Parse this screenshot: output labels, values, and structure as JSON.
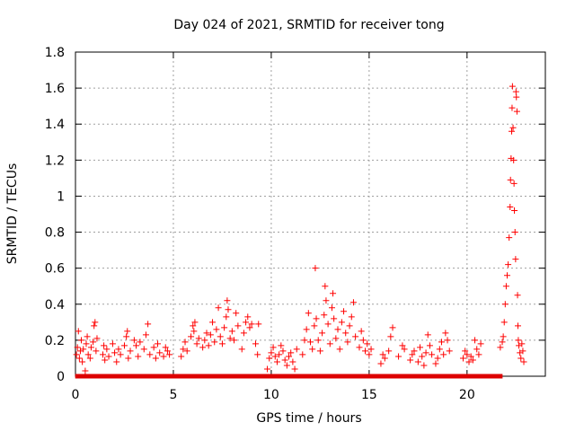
{
  "chart_data": {
    "type": "scatter",
    "title": "Day 024 of 2021, SRMTID for receiver tong",
    "xlabel": "GPS time / hours",
    "ylabel": "SRMTID / TECUs",
    "xlim": [
      0,
      24
    ],
    "ylim": [
      0,
      1.8
    ],
    "xticks": [
      0,
      5,
      10,
      15,
      20
    ],
    "yticks": [
      0,
      0.2,
      0.4,
      0.6,
      0.8,
      1,
      1.2,
      1.4,
      1.6,
      1.8
    ],
    "xtick_labels": [
      "0",
      "5",
      "10",
      "15",
      "20"
    ],
    "ytick_labels": [
      "0",
      "0.2",
      "0.4",
      "0.6",
      "0.8",
      "1",
      "1.2",
      "1.4",
      "1.6",
      "1.8"
    ],
    "grid": true,
    "marker": "+",
    "series_color": "#ff0000",
    "zero_marker_color": "#dd0000",
    "series": [
      {
        "name": "SRMTID",
        "points": [
          [
            0.05,
            0.12
          ],
          [
            0.1,
            0.16
          ],
          [
            0.15,
            0.25
          ],
          [
            0.2,
            0.1
          ],
          [
            0.25,
            0.14
          ],
          [
            0.3,
            0.2
          ],
          [
            0.35,
            0.08
          ],
          [
            0.4,
            0.15
          ],
          [
            0.5,
            0.03
          ],
          [
            0.55,
            0.18
          ],
          [
            0.6,
            0.22
          ],
          [
            0.65,
            0.12
          ],
          [
            0.75,
            0.1
          ],
          [
            0.8,
            0.16
          ],
          [
            0.9,
            0.19
          ],
          [
            0.95,
            0.28
          ],
          [
            1.0,
            0.3
          ],
          [
            1.05,
            0.14
          ],
          [
            1.1,
            0.21
          ],
          [
            1.4,
            0.12
          ],
          [
            1.45,
            0.17
          ],
          [
            1.5,
            0.09
          ],
          [
            1.6,
            0.15
          ],
          [
            1.7,
            0.11
          ],
          [
            1.9,
            0.18
          ],
          [
            2.0,
            0.13
          ],
          [
            2.1,
            0.08
          ],
          [
            2.2,
            0.15
          ],
          [
            2.3,
            0.12
          ],
          [
            2.5,
            0.17
          ],
          [
            2.6,
            0.22
          ],
          [
            2.65,
            0.25
          ],
          [
            2.7,
            0.1
          ],
          [
            2.8,
            0.14
          ],
          [
            3.0,
            0.2
          ],
          [
            3.1,
            0.17
          ],
          [
            3.2,
            0.11
          ],
          [
            3.3,
            0.19
          ],
          [
            3.5,
            0.15
          ],
          [
            3.6,
            0.23
          ],
          [
            3.7,
            0.29
          ],
          [
            3.8,
            0.12
          ],
          [
            4.0,
            0.16
          ],
          [
            4.1,
            0.1
          ],
          [
            4.2,
            0.18
          ],
          [
            4.3,
            0.13
          ],
          [
            4.5,
            0.11
          ],
          [
            4.6,
            0.16
          ],
          [
            4.7,
            0.14
          ],
          [
            4.8,
            0.12
          ],
          [
            5.4,
            0.11
          ],
          [
            5.5,
            0.15
          ],
          [
            5.6,
            0.19
          ],
          [
            5.7,
            0.14
          ],
          [
            5.9,
            0.22
          ],
          [
            6.0,
            0.28
          ],
          [
            6.05,
            0.25
          ],
          [
            6.1,
            0.3
          ],
          [
            6.2,
            0.18
          ],
          [
            6.3,
            0.21
          ],
          [
            6.5,
            0.16
          ],
          [
            6.6,
            0.2
          ],
          [
            6.7,
            0.24
          ],
          [
            6.8,
            0.17
          ],
          [
            6.9,
            0.23
          ],
          [
            7.0,
            0.3
          ],
          [
            7.1,
            0.19
          ],
          [
            7.2,
            0.26
          ],
          [
            7.3,
            0.38
          ],
          [
            7.4,
            0.22
          ],
          [
            7.5,
            0.18
          ],
          [
            7.6,
            0.27
          ],
          [
            7.7,
            0.33
          ],
          [
            7.75,
            0.42
          ],
          [
            7.8,
            0.37
          ],
          [
            7.9,
            0.21
          ],
          [
            8.0,
            0.25
          ],
          [
            8.1,
            0.2
          ],
          [
            8.2,
            0.35
          ],
          [
            8.3,
            0.28
          ],
          [
            8.5,
            0.15
          ],
          [
            8.6,
            0.24
          ],
          [
            8.7,
            0.3
          ],
          [
            8.8,
            0.33
          ],
          [
            8.9,
            0.27
          ],
          [
            9.0,
            0.29
          ],
          [
            9.2,
            0.18
          ],
          [
            9.3,
            0.12
          ],
          [
            9.35,
            0.29
          ],
          [
            9.8,
            0.04
          ],
          [
            9.9,
            0.1
          ],
          [
            10.0,
            0.13
          ],
          [
            10.1,
            0.16
          ],
          [
            10.2,
            0.11
          ],
          [
            10.3,
            0.08
          ],
          [
            10.4,
            0.12
          ],
          [
            10.5,
            0.17
          ],
          [
            10.6,
            0.14
          ],
          [
            10.7,
            0.09
          ],
          [
            10.8,
            0.06
          ],
          [
            10.9,
            0.11
          ],
          [
            11.0,
            0.13
          ],
          [
            11.1,
            0.08
          ],
          [
            11.2,
            0.04
          ],
          [
            11.3,
            0.15
          ],
          [
            11.6,
            0.12
          ],
          [
            11.7,
            0.2
          ],
          [
            11.8,
            0.26
          ],
          [
            11.9,
            0.35
          ],
          [
            12.0,
            0.19
          ],
          [
            12.1,
            0.15
          ],
          [
            12.2,
            0.28
          ],
          [
            12.25,
            0.6
          ],
          [
            12.3,
            0.32
          ],
          [
            12.4,
            0.2
          ],
          [
            12.5,
            0.14
          ],
          [
            12.6,
            0.24
          ],
          [
            12.7,
            0.34
          ],
          [
            12.75,
            0.5
          ],
          [
            12.8,
            0.42
          ],
          [
            12.9,
            0.29
          ],
          [
            13.0,
            0.18
          ],
          [
            13.1,
            0.38
          ],
          [
            13.15,
            0.46
          ],
          [
            13.2,
            0.32
          ],
          [
            13.3,
            0.21
          ],
          [
            13.4,
            0.26
          ],
          [
            13.5,
            0.15
          ],
          [
            13.6,
            0.3
          ],
          [
            13.7,
            0.36
          ],
          [
            13.8,
            0.24
          ],
          [
            13.9,
            0.19
          ],
          [
            14.0,
            0.28
          ],
          [
            14.1,
            0.33
          ],
          [
            14.2,
            0.41
          ],
          [
            14.3,
            0.22
          ],
          [
            14.5,
            0.16
          ],
          [
            14.6,
            0.25
          ],
          [
            14.7,
            0.2
          ],
          [
            14.8,
            0.14
          ],
          [
            14.9,
            0.18
          ],
          [
            15.0,
            0.12
          ],
          [
            15.1,
            0.15
          ],
          [
            15.6,
            0.07
          ],
          [
            15.7,
            0.12
          ],
          [
            15.8,
            0.1
          ],
          [
            16.0,
            0.14
          ],
          [
            16.1,
            0.22
          ],
          [
            16.2,
            0.27
          ],
          [
            16.5,
            0.11
          ],
          [
            16.7,
            0.17
          ],
          [
            16.8,
            0.15
          ],
          [
            17.1,
            0.09
          ],
          [
            17.2,
            0.12
          ],
          [
            17.3,
            0.14
          ],
          [
            17.5,
            0.08
          ],
          [
            17.6,
            0.16
          ],
          [
            17.7,
            0.11
          ],
          [
            17.8,
            0.06
          ],
          [
            17.9,
            0.13
          ],
          [
            18.0,
            0.23
          ],
          [
            18.1,
            0.17
          ],
          [
            18.2,
            0.12
          ],
          [
            18.4,
            0.07
          ],
          [
            18.5,
            0.1
          ],
          [
            18.6,
            0.15
          ],
          [
            18.7,
            0.19
          ],
          [
            18.8,
            0.12
          ],
          [
            18.9,
            0.24
          ],
          [
            19.0,
            0.2
          ],
          [
            19.1,
            0.14
          ],
          [
            19.8,
            0.1
          ],
          [
            19.9,
            0.14
          ],
          [
            20.0,
            0.12
          ],
          [
            20.1,
            0.08
          ],
          [
            20.2,
            0.11
          ],
          [
            20.3,
            0.09
          ],
          [
            20.4,
            0.2
          ],
          [
            20.5,
            0.15
          ],
          [
            20.6,
            0.12
          ],
          [
            20.7,
            0.18
          ],
          [
            21.7,
            0.16
          ],
          [
            21.8,
            0.19
          ],
          [
            21.85,
            0.22
          ],
          [
            21.9,
            0.3
          ],
          [
            21.95,
            0.4
          ],
          [
            22.0,
            0.5
          ],
          [
            22.05,
            0.56
          ],
          [
            22.1,
            0.62
          ],
          [
            22.15,
            0.77
          ],
          [
            22.2,
            0.94
          ],
          [
            22.22,
            1.09
          ],
          [
            22.25,
            1.21
          ],
          [
            22.28,
            1.36
          ],
          [
            22.3,
            1.49
          ],
          [
            22.32,
            1.61
          ],
          [
            22.35,
            1.38
          ],
          [
            22.38,
            1.2
          ],
          [
            22.4,
            1.07
          ],
          [
            22.42,
            0.92
          ],
          [
            22.45,
            0.8
          ],
          [
            22.48,
            0.65
          ],
          [
            22.5,
            1.58
          ],
          [
            22.52,
            1.55
          ],
          [
            22.55,
            1.47
          ],
          [
            22.58,
            0.45
          ],
          [
            22.6,
            0.28
          ],
          [
            22.62,
            0.2
          ],
          [
            22.65,
            0.17
          ],
          [
            22.7,
            0.13
          ],
          [
            22.75,
            0.1
          ],
          [
            22.8,
            0.18
          ],
          [
            22.85,
            0.14
          ],
          [
            22.9,
            0.08
          ]
        ]
      },
      {
        "name": "zero-level",
        "points": [
          [
            0.1,
            0
          ],
          [
            0.3,
            0
          ],
          [
            0.5,
            0
          ],
          [
            0.7,
            0
          ],
          [
            0.9,
            0
          ],
          [
            1.1,
            0
          ],
          [
            1.3,
            0
          ],
          [
            1.5,
            0
          ],
          [
            1.7,
            0
          ],
          [
            1.9,
            0
          ],
          [
            2.1,
            0
          ],
          [
            2.3,
            0
          ],
          [
            2.5,
            0
          ],
          [
            2.7,
            0
          ],
          [
            2.9,
            0
          ],
          [
            3.1,
            0
          ],
          [
            3.3,
            0
          ],
          [
            3.5,
            0
          ],
          [
            3.7,
            0
          ],
          [
            3.9,
            0
          ],
          [
            4.1,
            0
          ],
          [
            4.3,
            0
          ],
          [
            4.5,
            0
          ],
          [
            4.7,
            0
          ],
          [
            4.9,
            0
          ],
          [
            5.1,
            0
          ],
          [
            5.3,
            0
          ],
          [
            5.5,
            0
          ],
          [
            5.7,
            0
          ],
          [
            5.9,
            0
          ],
          [
            6.1,
            0
          ],
          [
            6.3,
            0
          ],
          [
            6.5,
            0
          ],
          [
            6.7,
            0
          ],
          [
            6.9,
            0
          ],
          [
            7.1,
            0
          ],
          [
            7.3,
            0
          ],
          [
            7.5,
            0
          ],
          [
            7.7,
            0
          ],
          [
            7.9,
            0
          ],
          [
            8.1,
            0
          ],
          [
            8.3,
            0
          ],
          [
            8.5,
            0
          ],
          [
            8.7,
            0
          ],
          [
            8.9,
            0
          ],
          [
            9.1,
            0
          ],
          [
            9.3,
            0
          ],
          [
            9.5,
            0
          ],
          [
            9.7,
            0
          ],
          [
            9.9,
            0
          ],
          [
            10.1,
            0
          ],
          [
            10.3,
            0
          ],
          [
            10.5,
            0
          ],
          [
            10.7,
            0
          ],
          [
            10.9,
            0
          ],
          [
            11.1,
            0
          ],
          [
            11.3,
            0
          ],
          [
            11.5,
            0
          ],
          [
            11.7,
            0
          ],
          [
            11.9,
            0
          ],
          [
            12.1,
            0
          ],
          [
            12.3,
            0
          ],
          [
            12.5,
            0
          ],
          [
            12.7,
            0
          ],
          [
            12.9,
            0
          ],
          [
            13.1,
            0
          ],
          [
            13.3,
            0
          ],
          [
            13.5,
            0
          ],
          [
            13.7,
            0
          ],
          [
            13.9,
            0
          ],
          [
            14.1,
            0
          ],
          [
            14.3,
            0
          ],
          [
            14.5,
            0
          ],
          [
            14.7,
            0
          ],
          [
            14.9,
            0
          ],
          [
            15.1,
            0
          ],
          [
            15.3,
            0
          ],
          [
            15.5,
            0
          ],
          [
            15.7,
            0
          ],
          [
            15.9,
            0
          ],
          [
            16.1,
            0
          ],
          [
            16.3,
            0
          ],
          [
            16.5,
            0
          ],
          [
            16.7,
            0
          ],
          [
            16.9,
            0
          ],
          [
            17.1,
            0
          ],
          [
            17.3,
            0
          ],
          [
            17.5,
            0
          ],
          [
            17.7,
            0
          ],
          [
            17.9,
            0
          ],
          [
            18.1,
            0
          ],
          [
            18.3,
            0
          ],
          [
            18.5,
            0
          ],
          [
            18.7,
            0
          ],
          [
            18.9,
            0
          ],
          [
            19.1,
            0
          ],
          [
            19.3,
            0
          ],
          [
            19.5,
            0
          ],
          [
            19.7,
            0
          ],
          [
            19.9,
            0
          ],
          [
            20.1,
            0
          ],
          [
            20.3,
            0
          ],
          [
            20.5,
            0
          ],
          [
            20.7,
            0
          ],
          [
            20.9,
            0
          ],
          [
            21.1,
            0
          ],
          [
            21.3,
            0
          ],
          [
            21.5,
            0
          ],
          [
            21.7,
            0
          ]
        ]
      }
    ]
  }
}
